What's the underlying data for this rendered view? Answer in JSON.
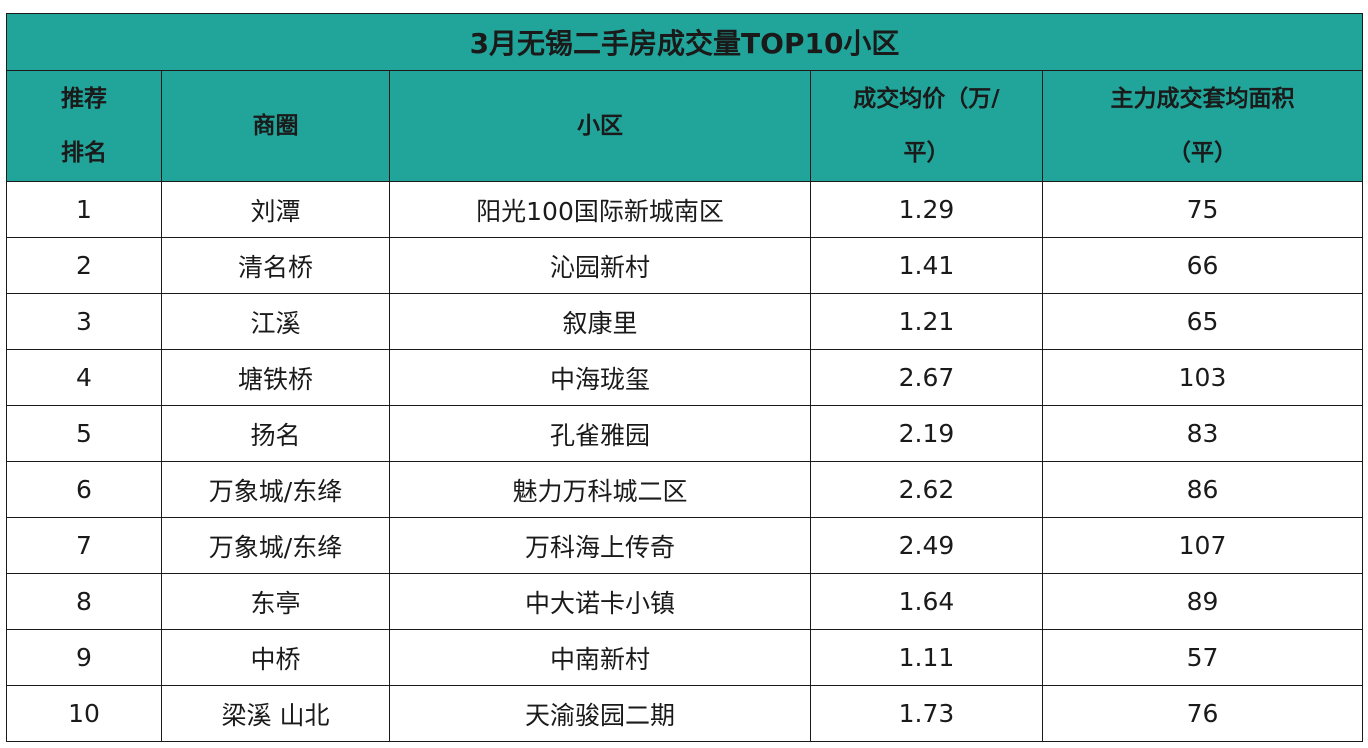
{
  "title": "3月无锡二手房成交量TOP10小区",
  "headers": {
    "rank_line1": "推荐",
    "rank_line2": "排名",
    "district": "商圈",
    "community": "小区",
    "price_line1": "成交均价（万/",
    "price_line2": "平）",
    "area_line1": "主力成交套均面积",
    "area_line2": "（平）"
  },
  "rows": [
    {
      "rank": "1",
      "district": "刘潭",
      "community": "阳光100国际新城南区",
      "price": "1.29",
      "area": "75"
    },
    {
      "rank": "2",
      "district": "清名桥",
      "community": "沁园新村",
      "price": "1.41",
      "area": "66"
    },
    {
      "rank": "3",
      "district": "江溪",
      "community": "叙康里",
      "price": "1.21",
      "area": "65"
    },
    {
      "rank": "4",
      "district": "塘铁桥",
      "community": "中海珑玺",
      "price": "2.67",
      "area": "103"
    },
    {
      "rank": "5",
      "district": "扬名",
      "community": "孔雀雅园",
      "price": "2.19",
      "area": "83"
    },
    {
      "rank": "6",
      "district": "万象城/东绛",
      "community": "魅力万科城二区",
      "price": "2.62",
      "area": "86"
    },
    {
      "rank": "7",
      "district": "万象城/东绛",
      "community": "万科海上传奇",
      "price": "2.49",
      "area": "107"
    },
    {
      "rank": "8",
      "district": "东亭",
      "community": "中大诺卡小镇",
      "price": "1.64",
      "area": "89"
    },
    {
      "rank": "9",
      "district": "中桥",
      "community": "中南新村",
      "price": "1.11",
      "area": "57"
    },
    {
      "rank": "10",
      "district": "梁溪 山北",
      "community": "天渝骏园二期",
      "price": "1.73",
      "area": "76"
    }
  ],
  "colors": {
    "header_bg": "#21a59a",
    "border": "#1a1a1a"
  }
}
